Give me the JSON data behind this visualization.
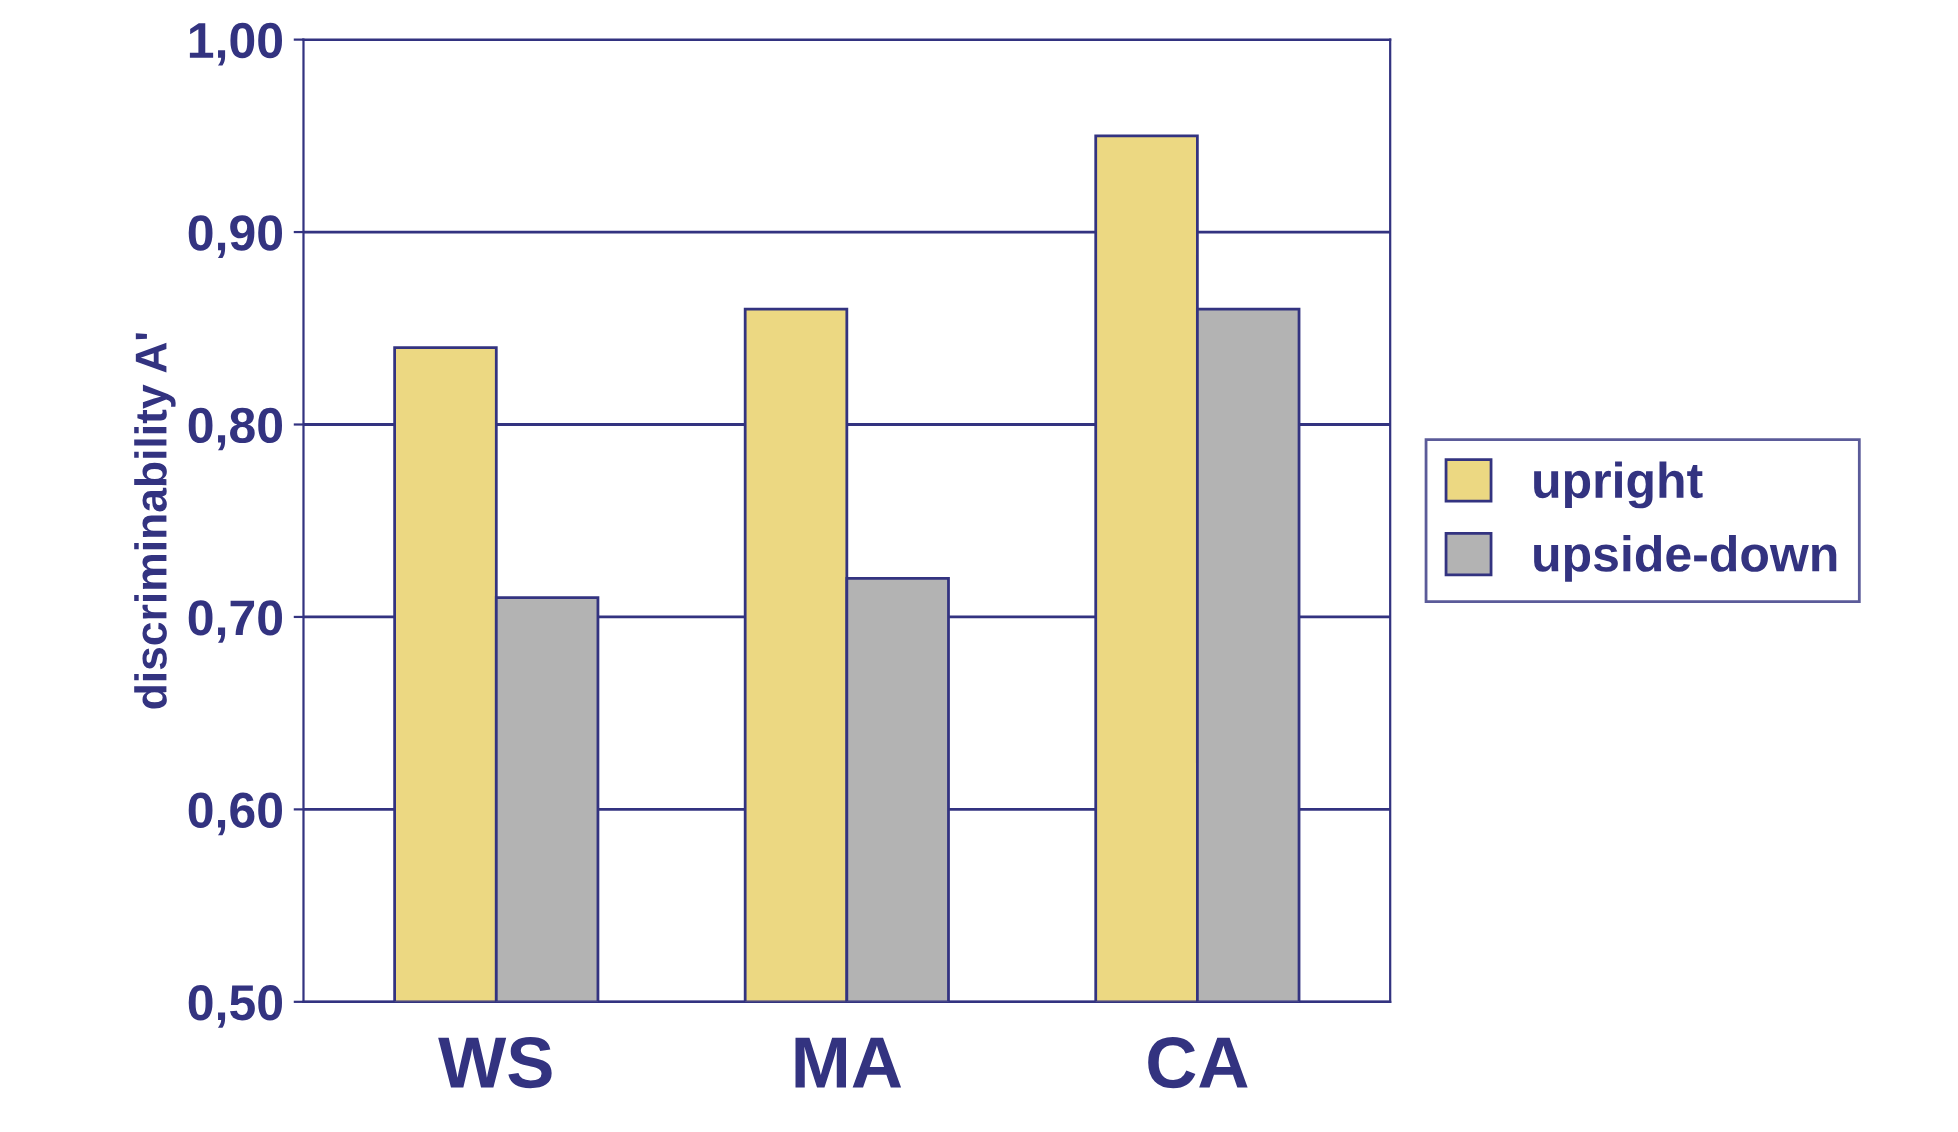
{
  "chart_data": {
    "type": "bar",
    "ylabel": "discriminability A'",
    "categories": [
      "WS",
      "MA",
      "CA"
    ],
    "series": [
      {
        "name": "upright",
        "color": "#ecd882",
        "values": [
          0.84,
          0.86,
          0.95
        ]
      },
      {
        "name": "upside-down",
        "color": "#b3b3b3",
        "values": [
          0.71,
          0.72,
          0.86
        ]
      }
    ],
    "ylim": [
      0.5,
      1.0
    ],
    "yticks": [
      {
        "value": 0.5,
        "label": "0,50"
      },
      {
        "value": 0.6,
        "label": "0,60"
      },
      {
        "value": 0.7,
        "label": "0,70"
      },
      {
        "value": 0.8,
        "label": "0,80"
      },
      {
        "value": 0.9,
        "label": "0,90"
      },
      {
        "value": 1.0,
        "label": "1,00"
      }
    ],
    "grid": "y",
    "legend": "right"
  }
}
